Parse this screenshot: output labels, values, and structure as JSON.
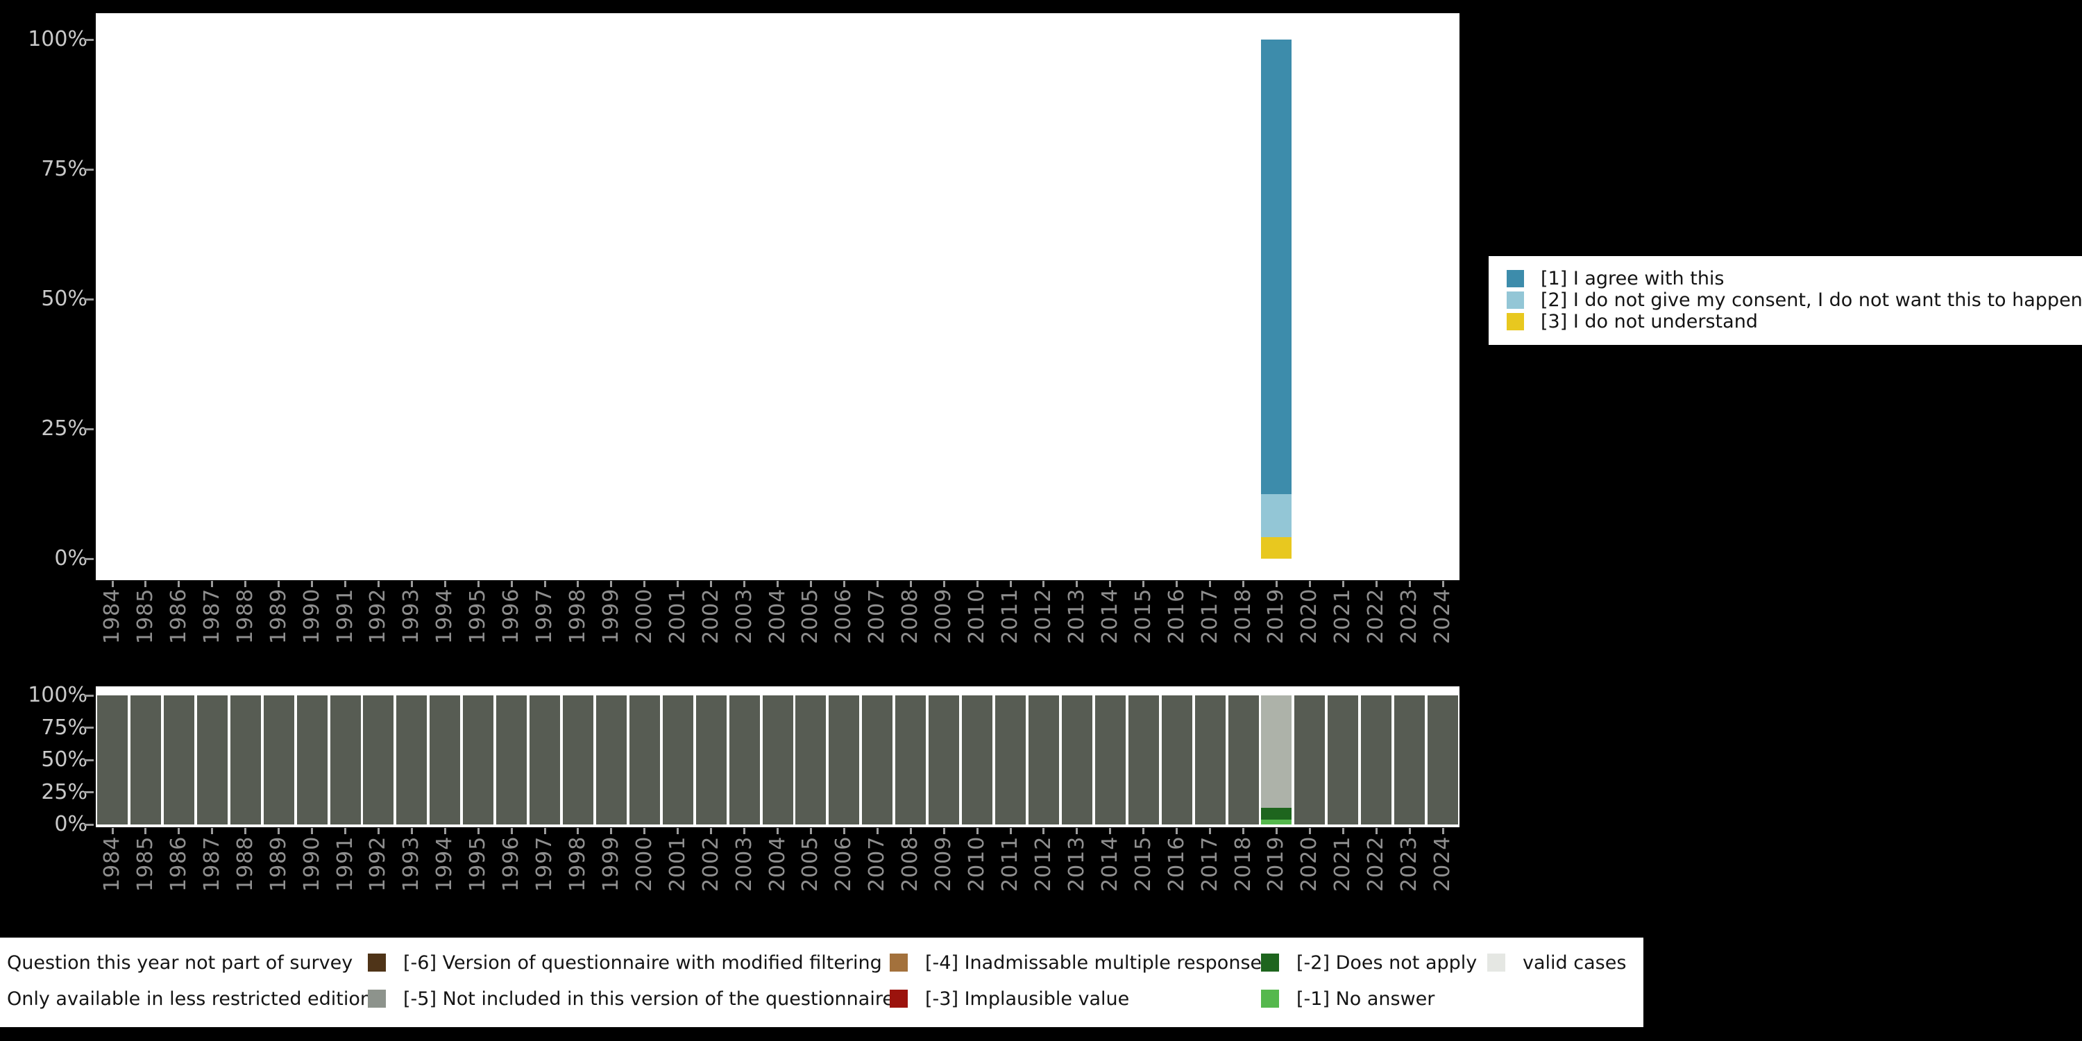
{
  "page": {
    "background_color": "#000000",
    "panel_color": "#ffffff"
  },
  "legend_main": {
    "items": [
      {
        "label": "[1] I agree with this",
        "color": "#3d8cab"
      },
      {
        "label": "[2] I do not give my consent, I do not want this to happen",
        "color": "#93c6d6"
      },
      {
        "label": "[3] I do not understand",
        "color": "#e8c81f"
      }
    ]
  },
  "legend_missing": {
    "rows": [
      {
        "items": [
          {
            "label": "Question this year not part of survey",
            "swatch": null
          },
          {
            "label": "[-6] Version of questionnaire with modified filtering",
            "swatch": "#4f3418"
          },
          {
            "label": "[-4] Inadmissable multiple response",
            "swatch": "#a3713c"
          },
          {
            "label": "[-2] Does not apply",
            "swatch": "#1e651e"
          },
          {
            "label": "valid cases",
            "swatch": "#e5e7e3"
          }
        ]
      },
      {
        "items": [
          {
            "label": "Only available in less restricted edition",
            "swatch": null
          },
          {
            "label": "[-5] Not included in this version of the questionnaire",
            "swatch": "#8d938c"
          },
          {
            "label": "[-3] Implausible value",
            "swatch": "#9b130d"
          },
          {
            "label": "[-1] No answer",
            "swatch": "#55b84d"
          }
        ]
      }
    ]
  },
  "chart_data": [
    {
      "type": "bar",
      "stacked": true,
      "title": "",
      "xlabel": "",
      "ylabel": "",
      "x": [
        "1984",
        "1985",
        "1986",
        "1987",
        "1988",
        "1989",
        "1990",
        "1991",
        "1992",
        "1993",
        "1994",
        "1995",
        "1996",
        "1997",
        "1998",
        "1999",
        "2000",
        "2001",
        "2002",
        "2003",
        "2004",
        "2005",
        "2006",
        "2007",
        "2008",
        "2009",
        "2010",
        "2011",
        "2012",
        "2013",
        "2014",
        "2015",
        "2016",
        "2017",
        "2018",
        "2019",
        "2020",
        "2021",
        "2022",
        "2023",
        "2024"
      ],
      "y_axis": {
        "ticks": [
          "0%",
          "25%",
          "50%",
          "75%",
          "100%"
        ],
        "range": [
          0,
          100
        ]
      },
      "legend_position": "right",
      "grid": false,
      "default_bar_segments": [],
      "bar_overrides": {
        "2019": [
          {
            "name": "[3] I do not understand",
            "value": 4.1,
            "color": "#e8c81f"
          },
          {
            "name": "[2] I do not give my consent, I do not want this to happen",
            "value": 8.4,
            "color": "#93c6d6"
          },
          {
            "name": "[1] I agree with this",
            "value": 87.5,
            "color": "#3d8cab"
          }
        ]
      }
    },
    {
      "type": "bar",
      "stacked": true,
      "title": "",
      "xlabel": "",
      "ylabel": "",
      "x": [
        "1984",
        "1985",
        "1986",
        "1987",
        "1988",
        "1989",
        "1990",
        "1991",
        "1992",
        "1993",
        "1994",
        "1995",
        "1996",
        "1997",
        "1998",
        "1999",
        "2000",
        "2001",
        "2002",
        "2003",
        "2004",
        "2005",
        "2006",
        "2007",
        "2008",
        "2009",
        "2010",
        "2011",
        "2012",
        "2013",
        "2014",
        "2015",
        "2016",
        "2017",
        "2018",
        "2019",
        "2020",
        "2021",
        "2022",
        "2023",
        "2024"
      ],
      "y_axis": {
        "ticks": [
          "0%",
          "25%",
          "50%",
          "75%",
          "100%"
        ],
        "range": [
          0,
          100
        ]
      },
      "legend_position": "bottom",
      "grid": false,
      "default_bar_segments": [
        {
          "name": "Question this year not part of survey",
          "value": 100,
          "color": "#575c53"
        }
      ],
      "bar_overrides": {
        "2019": [
          {
            "name": "[-1] No answer",
            "value": 4,
            "color": "#55b84d"
          },
          {
            "name": "[-2] Does not apply",
            "value": 9,
            "color": "#1e651e"
          },
          {
            "name": "valid cases",
            "value": 87,
            "color": "#adb2a9"
          }
        ]
      }
    }
  ]
}
